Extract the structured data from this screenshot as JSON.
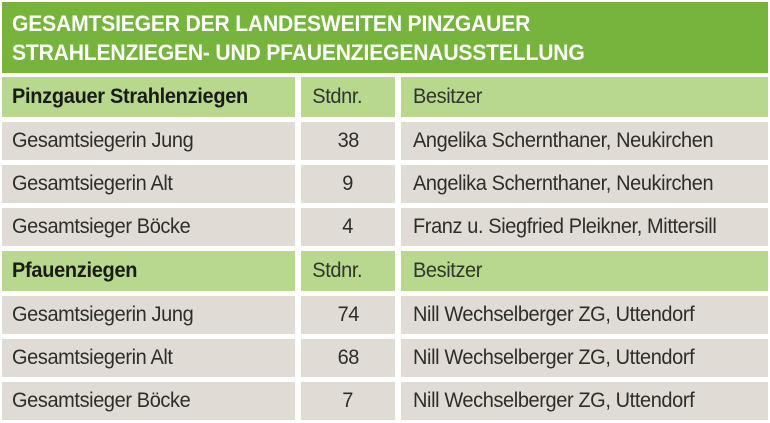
{
  "title": {
    "line1": "GESAMTSIEGER DER LANDESWEITEN PINZGAUER",
    "line2": "STRAHLENZIEGEN- UND PFAUENZIEGENAUSSTELLUNG"
  },
  "colors": {
    "band_green": "#77b43d",
    "header_light_green": "#b7d88d",
    "row_gray": "#e0dcd5",
    "title_text": "#ffffff",
    "body_text": "#2e2d29"
  },
  "columns": {
    "stdnr_label": "Stdnr.",
    "besitzer_label": "Besitzer"
  },
  "sections": [
    {
      "category": "Pinzgauer Strahlenziegen",
      "stdnr_label": "Stdnr.",
      "besitzer_label": "Besitzer",
      "rows": [
        {
          "label": "Gesamtsiegerin Jung",
          "stdnr": "38",
          "besitzer": "Angelika Schernthaner, Neukirchen"
        },
        {
          "label": "Gesamtsiegerin Alt",
          "stdnr": "9",
          "besitzer": "Angelika Schernthaner, Neukirchen"
        },
        {
          "label": "Gesamtsieger Böcke",
          "stdnr": "4",
          "besitzer": "Franz u. Siegfried Pleikner, Mittersill"
        }
      ]
    },
    {
      "category": "Pfauenziegen",
      "stdnr_label": "Stdnr.",
      "besitzer_label": "Besitzer",
      "rows": [
        {
          "label": "Gesamtsiegerin Jung",
          "stdnr": "74",
          "besitzer": "Nill Wechselberger ZG, Uttendorf"
        },
        {
          "label": "Gesamtsiegerin Alt",
          "stdnr": "68",
          "besitzer": "Nill Wechselberger ZG, Uttendorf"
        },
        {
          "label": "Gesamtsieger Böcke",
          "stdnr": "7",
          "besitzer": "Nill Wechselberger ZG, Uttendorf"
        }
      ]
    }
  ]
}
